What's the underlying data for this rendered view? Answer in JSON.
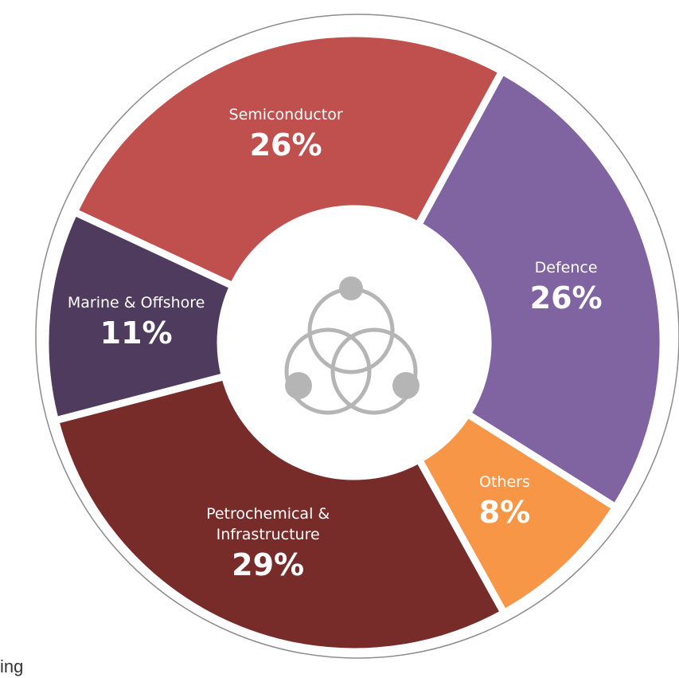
{
  "chart_data": {
    "type": "donut",
    "categories": [
      "Semiconductor",
      "Defence",
      "Others",
      "Petrochemical & Infrastructure",
      "Marine & Offshore"
    ],
    "values": [
      26,
      26,
      8,
      29,
      11
    ],
    "value_labels": [
      "26%",
      "26%",
      "8%",
      "29%",
      "11%"
    ],
    "colors": [
      "#c0504d",
      "#8064a2",
      "#f79646",
      "#772c2a",
      "#4e3b5e"
    ]
  },
  "footer_text": "ing"
}
